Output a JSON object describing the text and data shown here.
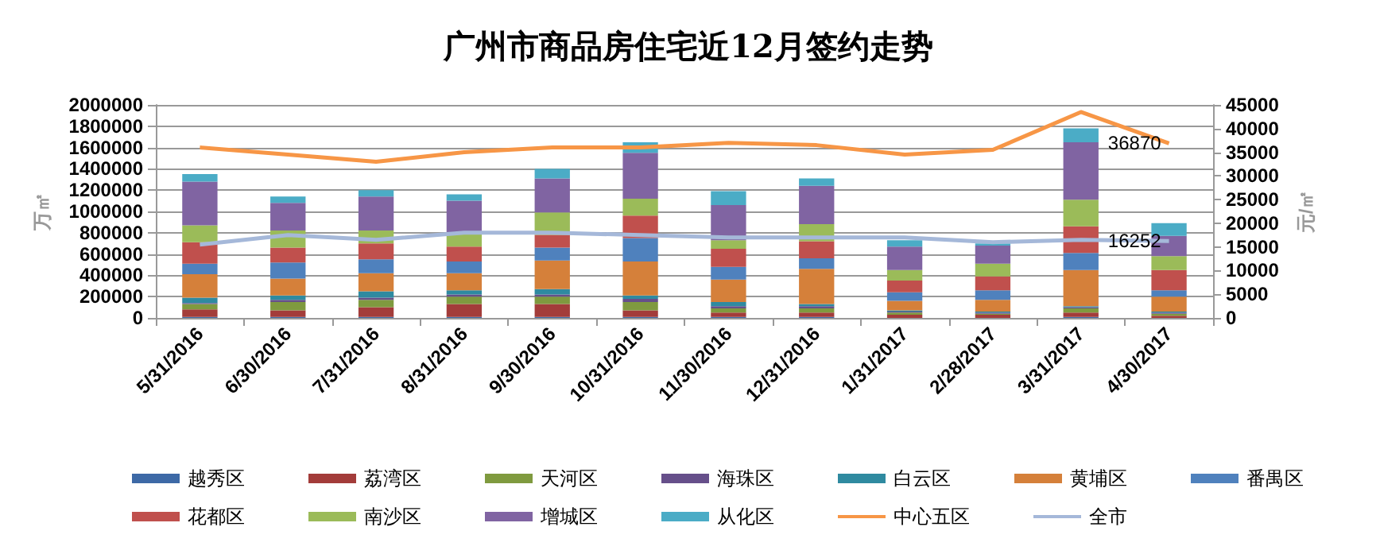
{
  "chart_data": {
    "type": "bar",
    "stacked": true,
    "title": "广州市商品房住宅近12月签约走势",
    "ylabel": "万㎡",
    "y2label": "元/㎡",
    "categories": [
      "5/31/2016",
      "6/30/2016",
      "7/31/2016",
      "8/31/2016",
      "9/30/2016",
      "10/31/2016",
      "11/30/2016",
      "12/31/2016",
      "1/31/2017",
      "2/28/2017",
      "3/31/2017",
      "4/30/2017"
    ],
    "series": [
      {
        "name": "越秀区",
        "color": "#3d69a6",
        "values": [
          10000,
          10000,
          10000,
          10000,
          10000,
          10000,
          10000,
          10000,
          0,
          0,
          10000,
          0
        ]
      },
      {
        "name": "荔湾区",
        "color": "#a33c3a",
        "values": [
          70000,
          60000,
          90000,
          120000,
          120000,
          60000,
          40000,
          40000,
          30000,
          30000,
          40000,
          20000
        ]
      },
      {
        "name": "天河区",
        "color": "#7f9a3f",
        "values": [
          50000,
          80000,
          70000,
          70000,
          70000,
          80000,
          40000,
          40000,
          20000,
          10000,
          40000,
          20000
        ]
      },
      {
        "name": "海珠区",
        "color": "#664f8a",
        "values": [
          10000,
          20000,
          20000,
          20000,
          20000,
          30000,
          20000,
          20000,
          10000,
          10000,
          10000,
          10000
        ]
      },
      {
        "name": "白云区",
        "color": "#2f8aa0",
        "values": [
          50000,
          40000,
          60000,
          40000,
          50000,
          30000,
          40000,
          20000,
          10000,
          10000,
          10000,
          10000
        ]
      },
      {
        "name": "黄埔区",
        "color": "#d5803a",
        "values": [
          220000,
          160000,
          170000,
          160000,
          270000,
          320000,
          210000,
          330000,
          90000,
          110000,
          340000,
          140000
        ]
      },
      {
        "name": "番禺区",
        "color": "#4f81bd",
        "values": [
          100000,
          150000,
          130000,
          110000,
          120000,
          220000,
          120000,
          100000,
          80000,
          90000,
          160000,
          60000
        ]
      },
      {
        "name": "花都区",
        "color": "#c0504d",
        "values": [
          200000,
          140000,
          150000,
          140000,
          120000,
          210000,
          170000,
          160000,
          110000,
          130000,
          250000,
          190000
        ]
      },
      {
        "name": "南沙区",
        "color": "#9bbb59",
        "values": [
          160000,
          160000,
          120000,
          130000,
          210000,
          160000,
          80000,
          160000,
          100000,
          120000,
          250000,
          130000
        ]
      },
      {
        "name": "增城区",
        "color": "#8064a2",
        "values": [
          410000,
          260000,
          320000,
          300000,
          320000,
          430000,
          330000,
          360000,
          220000,
          170000,
          540000,
          190000
        ]
      },
      {
        "name": "从化区",
        "color": "#4bacc6",
        "values": [
          70000,
          60000,
          60000,
          60000,
          90000,
          100000,
          130000,
          70000,
          60000,
          20000,
          130000,
          120000
        ]
      },
      {
        "name": "中心五区",
        "type": "line",
        "axis": "y2",
        "color": "#f79646",
        "values": [
          36000,
          34500,
          33000,
          35000,
          36000,
          36000,
          37000,
          36500,
          34500,
          35500,
          43500,
          36870
        ],
        "value_labels": [
          null,
          null,
          null,
          null,
          null,
          null,
          null,
          null,
          null,
          null,
          null,
          "36870"
        ]
      },
      {
        "name": "全市",
        "type": "line",
        "axis": "y2",
        "color": "#a5b8d9",
        "values": [
          15500,
          17500,
          16500,
          18000,
          18000,
          17500,
          17000,
          17000,
          17000,
          16000,
          16500,
          16252
        ],
        "value_labels": [
          null,
          null,
          null,
          null,
          null,
          null,
          null,
          null,
          null,
          null,
          null,
          "16252"
        ]
      }
    ],
    "ylim": [
      0,
      2000000
    ],
    "yticks": [
      0,
      200000,
      400000,
      600000,
      800000,
      1000000,
      1200000,
      1400000,
      1600000,
      1800000,
      2000000
    ],
    "y2lim": [
      0,
      45000
    ],
    "y2ticks": [
      0,
      5000,
      10000,
      15000,
      20000,
      25000,
      30000,
      35000,
      40000,
      45000
    ],
    "grid": "y",
    "legend": "bottom",
    "marker": "none",
    "line_style": "solid"
  }
}
